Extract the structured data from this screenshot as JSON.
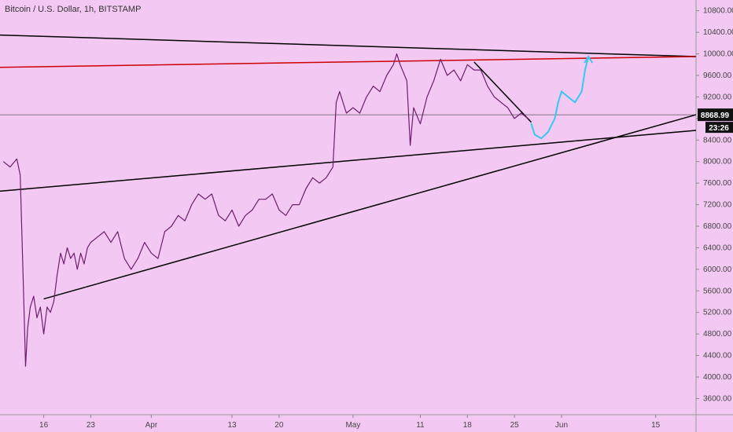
{
  "title": "Bitcoin / U.S. Dollar, 1h, BITSTAMP",
  "chart_data": {
    "type": "line",
    "title": "Bitcoin / U.S. Dollar, 1h, BITSTAMP",
    "x_ticks": [
      "16",
      "23",
      "Apr",
      "13",
      "20",
      "May",
      "11",
      "18",
      "25",
      "Jun",
      "15"
    ],
    "x_tick_days": [
      16,
      23,
      32,
      44,
      51,
      62,
      72,
      79,
      86,
      93,
      107
    ],
    "y_ticks": [
      3600,
      4000,
      4400,
      4800,
      5200,
      5600,
      6000,
      6400,
      6800,
      7200,
      7600,
      8000,
      8400,
      8800,
      9200,
      9600,
      10000,
      10400,
      10800
    ],
    "y_tick_labels": [
      "3600.00",
      "4000.00",
      "4400.00",
      "4800.00",
      "5200.00",
      "5600.00",
      "6000.00",
      "6400.00",
      "6800.00",
      "7200.00",
      "7600.00",
      "8000.00",
      "8400.00",
      "8800.00",
      "9200.00",
      "9600.00",
      "10000.00",
      "10400.00",
      "10800.00"
    ],
    "ylim": [
      3300,
      11000
    ],
    "xlim": [
      9.5,
      113
    ],
    "last_price": 8868.99,
    "last_price_label": "8868.99",
    "countdown_label": "23:26",
    "price_series": [
      [
        10,
        8000
      ],
      [
        11,
        7900
      ],
      [
        12,
        8050
      ],
      [
        12.5,
        7750
      ],
      [
        13,
        5600
      ],
      [
        13.3,
        4200
      ],
      [
        13.6,
        4900
      ],
      [
        14,
        5300
      ],
      [
        14.5,
        5500
      ],
      [
        15,
        5100
      ],
      [
        15.5,
        5300
      ],
      [
        16,
        4800
      ],
      [
        16.5,
        5300
      ],
      [
        17,
        5200
      ],
      [
        17.5,
        5400
      ],
      [
        18,
        5900
      ],
      [
        18.5,
        6300
      ],
      [
        19,
        6100
      ],
      [
        19.5,
        6400
      ],
      [
        20,
        6200
      ],
      [
        20.5,
        6300
      ],
      [
        21,
        6000
      ],
      [
        21.5,
        6300
      ],
      [
        22,
        6100
      ],
      [
        22.5,
        6400
      ],
      [
        23,
        6500
      ],
      [
        24,
        6600
      ],
      [
        25,
        6700
      ],
      [
        26,
        6500
      ],
      [
        27,
        6700
      ],
      [
        28,
        6200
      ],
      [
        29,
        6000
      ],
      [
        30,
        6200
      ],
      [
        31,
        6500
      ],
      [
        32,
        6300
      ],
      [
        33,
        6200
      ],
      [
        34,
        6700
      ],
      [
        35,
        6800
      ],
      [
        36,
        7000
      ],
      [
        37,
        6900
      ],
      [
        38,
        7200
      ],
      [
        39,
        7400
      ],
      [
        40,
        7300
      ],
      [
        41,
        7400
      ],
      [
        42,
        7000
      ],
      [
        43,
        6900
      ],
      [
        44,
        7100
      ],
      [
        45,
        6800
      ],
      [
        46,
        7000
      ],
      [
        47,
        7100
      ],
      [
        48,
        7300
      ],
      [
        49,
        7300
      ],
      [
        50,
        7400
      ],
      [
        51,
        7100
      ],
      [
        52,
        7000
      ],
      [
        53,
        7200
      ],
      [
        54,
        7200
      ],
      [
        55,
        7500
      ],
      [
        56,
        7700
      ],
      [
        57,
        7600
      ],
      [
        58,
        7700
      ],
      [
        58.5,
        7800
      ],
      [
        59,
        7900
      ],
      [
        59.5,
        9100
      ],
      [
        60,
        9300
      ],
      [
        61,
        8900
      ],
      [
        62,
        9000
      ],
      [
        63,
        8900
      ],
      [
        64,
        9200
      ],
      [
        65,
        9400
      ],
      [
        66,
        9300
      ],
      [
        67,
        9600
      ],
      [
        68,
        9800
      ],
      [
        68.5,
        10000
      ],
      [
        69,
        9800
      ],
      [
        70,
        9500
      ],
      [
        70.5,
        8300
      ],
      [
        71,
        9000
      ],
      [
        72,
        8700
      ],
      [
        73,
        9200
      ],
      [
        74,
        9500
      ],
      [
        75,
        9900
      ],
      [
        76,
        9600
      ],
      [
        77,
        9700
      ],
      [
        78,
        9500
      ],
      [
        79,
        9800
      ],
      [
        80,
        9700
      ],
      [
        81,
        9700
      ],
      [
        82,
        9400
      ],
      [
        83,
        9200
      ],
      [
        84,
        9100
      ],
      [
        85,
        9000
      ],
      [
        86,
        8800
      ],
      [
        87,
        8900
      ],
      [
        88,
        8800
      ]
    ],
    "trendlines": [
      {
        "color": "#000000",
        "points": [
          [
            9.5,
            10350
          ],
          [
            113,
            9950
          ]
        ]
      },
      {
        "color": "#cc0000",
        "points": [
          [
            9.5,
            9750
          ],
          [
            113,
            9950
          ]
        ]
      },
      {
        "color": "#000000",
        "points": [
          [
            9.5,
            7450
          ],
          [
            113,
            8580
          ]
        ]
      },
      {
        "color": "#000000",
        "points": [
          [
            16,
            5450
          ],
          [
            113,
            8870
          ]
        ]
      },
      {
        "color": "#000000",
        "points": [
          [
            80,
            9850
          ],
          [
            88.5,
            8730
          ]
        ]
      }
    ],
    "projection": {
      "color": "#37c8f0",
      "points": [
        [
          88.5,
          8700
        ],
        [
          89,
          8500
        ],
        [
          90,
          8430
        ],
        [
          91,
          8550
        ],
        [
          92,
          8800
        ],
        [
          92.5,
          9100
        ],
        [
          93,
          9300
        ],
        [
          94,
          9200
        ],
        [
          95,
          9100
        ],
        [
          96,
          9300
        ],
        [
          96.5,
          9700
        ],
        [
          97,
          9950
        ]
      ]
    }
  }
}
